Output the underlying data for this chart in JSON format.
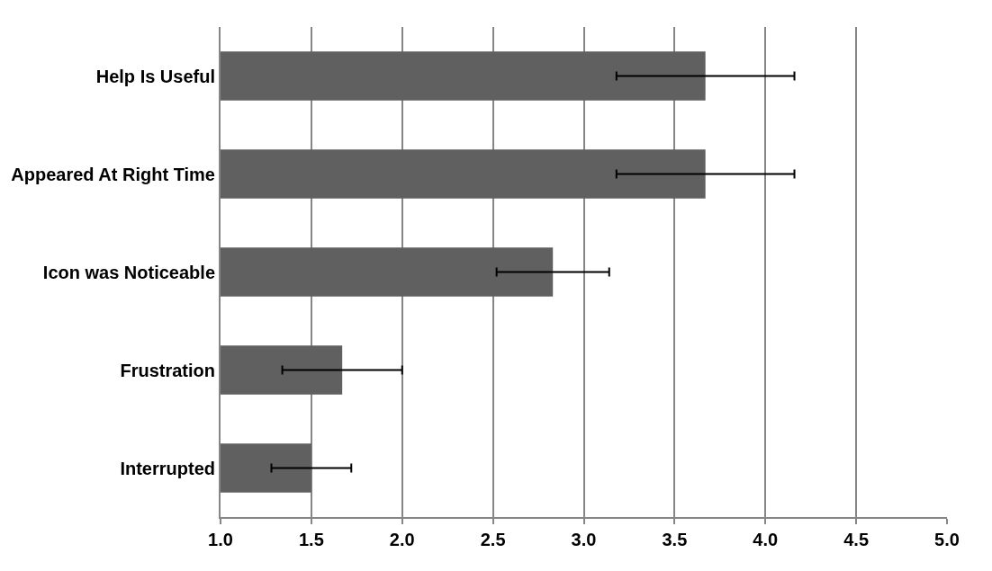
{
  "chart_data": {
    "type": "bar",
    "orientation": "horizontal",
    "categories": [
      "Help Is Useful",
      "Appeared At Right Time",
      "Icon was Noticeable",
      "Frustration",
      "Interrupted"
    ],
    "values": [
      3.67,
      3.67,
      2.83,
      1.67,
      1.5
    ],
    "errors": [
      0.49,
      0.49,
      0.31,
      0.33,
      0.22
    ],
    "color": "#606060",
    "xlim": [
      1,
      5
    ],
    "xticks": [
      {
        "value": 1,
        "label": "1.0"
      },
      {
        "value": 1.5,
        "label": "1.5"
      },
      {
        "value": 2,
        "label": "2.0"
      },
      {
        "value": 2.5,
        "label": "2.5"
      },
      {
        "value": 3,
        "label": "3.0"
      },
      {
        "value": 3.5,
        "label": "3.5"
      },
      {
        "value": 4,
        "label": "4.0"
      },
      {
        "value": 4.5,
        "label": "4.5"
      },
      {
        "value": 5,
        "label": "5.0"
      }
    ],
    "grid": "x"
  }
}
